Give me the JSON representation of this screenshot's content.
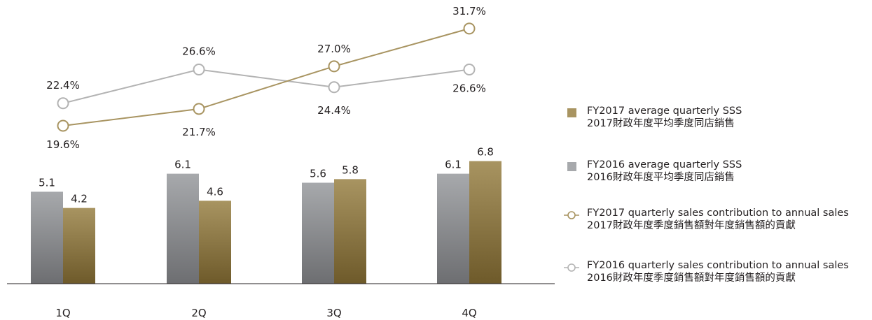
{
  "chart_data": {
    "type": "bar+line",
    "categories": [
      "1Q",
      "2Q",
      "3Q",
      "4Q"
    ],
    "bar_series": [
      {
        "key": "fy2016_sss",
        "values": [
          5.1,
          6.1,
          5.6,
          6.1
        ],
        "labels": [
          "5.1",
          "6.1",
          "5.6",
          "6.1"
        ],
        "color": "#a7a9ac"
      },
      {
        "key": "fy2017_sss",
        "values": [
          4.2,
          4.6,
          5.8,
          6.8
        ],
        "labels": [
          "4.2",
          "4.6",
          "5.8",
          "6.8"
        ],
        "color": "#a89461"
      }
    ],
    "line_series": [
      {
        "key": "fy2016_contribution",
        "values": [
          22.4,
          26.6,
          24.4,
          26.6
        ],
        "labels": [
          "22.4%",
          "26.6%",
          "24.4%",
          "26.6%"
        ],
        "color": "#b3b3b3"
      },
      {
        "key": "fy2017_contribution",
        "values": [
          19.6,
          21.7,
          27.0,
          31.7
        ],
        "labels": [
          "19.6%",
          "21.7%",
          "27.0%",
          "31.7%"
        ],
        "color": "#a89461"
      }
    ],
    "bar_ylim": [
      0,
      7.5
    ],
    "line_ylim": [
      17,
      33
    ],
    "grid": false
  },
  "legend": [
    {
      "kind": "bar",
      "color": "#a89461",
      "line1": "FY2017 average quarterly SSS",
      "line2": "2017財政年度平均季度同店銷售"
    },
    {
      "kind": "bar",
      "color": "#a7a9ac",
      "line1": "FY2016 average quarterly SSS",
      "line2": "2016財政年度平均季度同店銷售"
    },
    {
      "kind": "line",
      "color": "#a89461",
      "line1": "FY2017 quarterly sales contribution to annual sales",
      "line2": "2017財政年度季度銷售額對年度銷售額的貢獻"
    },
    {
      "kind": "line",
      "color": "#b3b3b3",
      "line1": "FY2016 quarterly sales contribution to annual sales",
      "line2": "2016財政年度季度銷售額對年度銷售額的貢獻"
    }
  ]
}
